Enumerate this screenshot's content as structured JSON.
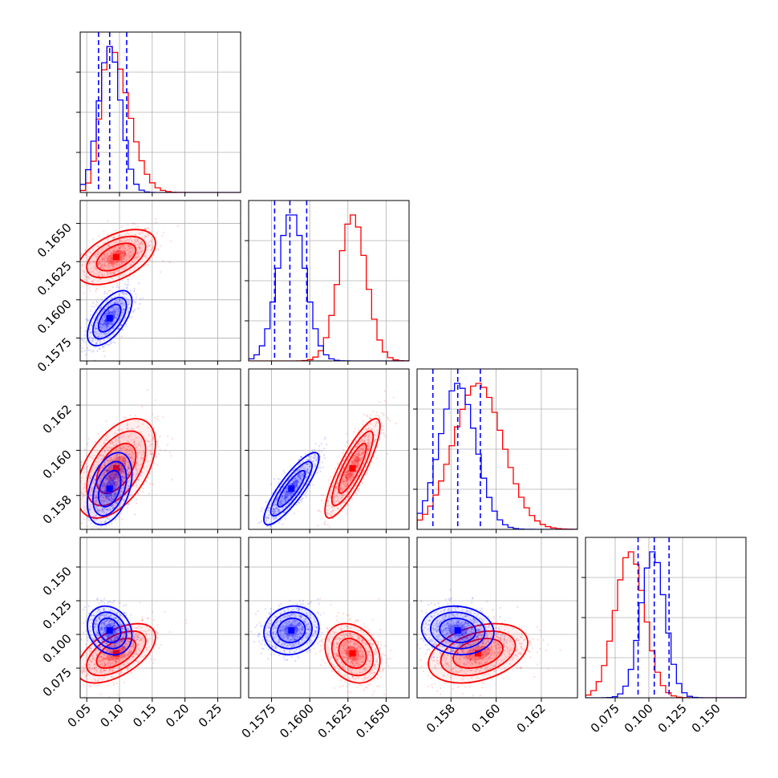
{
  "figure": {
    "type": "corner-plot"
  },
  "chart_data": {
    "type": "scatter",
    "subtype": "corner",
    "params": [
      {
        "ticks": [
          0.05,
          0.1,
          0.15,
          0.2,
          0.25
        ],
        "tick_labels": [
          "0.05",
          "0.10",
          "0.15",
          "0.20",
          "0.25"
        ],
        "range": [
          0.04,
          0.285
        ]
      },
      {
        "ticks": [
          0.1575,
          0.16,
          0.1625,
          0.165
        ],
        "tick_labels": [
          "0.1575",
          "0.1600",
          "0.1625",
          "0.1650"
        ],
        "range": [
          0.156,
          0.1665
        ]
      },
      {
        "ticks": [
          0.158,
          0.16,
          0.162
        ],
        "tick_labels": [
          "0.158",
          "0.160",
          "0.162"
        ],
        "range": [
          0.1565,
          0.1636
        ]
      },
      {
        "ticks": [
          0.075,
          0.1,
          0.125,
          0.15
        ],
        "tick_labels": [
          "0.075",
          "0.100",
          "0.125",
          "0.150"
        ],
        "range": [
          0.053,
          0.172
        ]
      }
    ],
    "series": [
      {
        "color": "#ff0000",
        "mean": [
          0.095,
          0.1628,
          0.1592,
          0.086
        ],
        "sd": [
          0.03,
          0.0009,
          0.0011,
          0.011
        ],
        "corr": [
          [
            1,
            0.5,
            0.5,
            0.55
          ],
          [
            0.5,
            1,
            0.85,
            -0.25
          ],
          [
            0.5,
            0.85,
            1,
            0.35
          ],
          [
            0.55,
            -0.25,
            0.35,
            1
          ]
        ]
      },
      {
        "color": "#0000ff",
        "mean": [
          0.085,
          0.1588,
          0.1583,
          0.103
        ],
        "sd": [
          0.017,
          0.0009,
          0.0008,
          0.009
        ],
        "corr": [
          [
            1,
            0.6,
            0.4,
            -0.2
          ],
          [
            0.6,
            1,
            0.85,
            0.1
          ],
          [
            0.4,
            0.85,
            1,
            -0.1
          ],
          [
            -0.2,
            0.1,
            -0.1,
            1
          ]
        ]
      }
    ],
    "quantile_lines": [
      {
        "color": "#0000ff",
        "style": "dashed",
        "values": [
          0.068,
          0.085,
          0.111
        ]
      },
      {
        "color": "#0000ff",
        "style": "dashed",
        "values": [
          0.1577,
          0.1587,
          0.1598
        ]
      },
      {
        "color": "#0000ff",
        "style": "dashed",
        "values": [
          0.1572,
          0.1583,
          0.1593
        ]
      },
      {
        "color": "#0000ff",
        "style": "dashed",
        "values": [
          0.092,
          0.104,
          0.115
        ]
      }
    ],
    "grid": true,
    "contour_levels": [
      0.118,
      0.393,
      0.675,
      0.864
    ]
  }
}
